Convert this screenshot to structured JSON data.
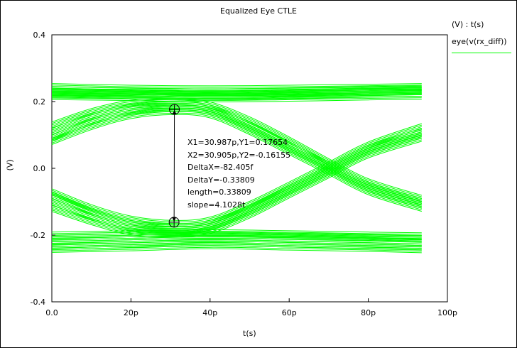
{
  "window": {
    "title": "Equalized Eye CTLE"
  },
  "legend": {
    "units_label": "(V) : t(s)",
    "series_label": "eye(v(rx_diff))",
    "series_color": "#00ff00"
  },
  "marker": {
    "lines": [
      "X1=30.987p,Y1=0.17654",
      "X2=30.905p,Y2=-0.16155",
      "DeltaX=-82.405f",
      "DeltaY=-0.33809",
      "length=0.33809",
      "slope=4.1028t"
    ]
  },
  "chart_data": {
    "type": "line",
    "title": "Equalized Eye CTLE",
    "xlabel": "t(s)",
    "ylabel": "(V)",
    "xlim": [
      0,
      100
    ],
    "ylim": [
      -0.4,
      0.4
    ],
    "x_unit": "p",
    "xticks": [
      "0.0",
      "20p",
      "40p",
      "60p",
      "80p",
      "100p"
    ],
    "xtick_values": [
      0,
      20,
      40,
      60,
      80,
      100
    ],
    "yticks": [
      "0.4",
      "0.2",
      "0.0",
      "-0.2",
      "-0.4"
    ],
    "ytick_values": [
      0.4,
      0.2,
      0.0,
      -0.2,
      -0.4
    ],
    "grid": false,
    "legend_position": "right",
    "series": [
      {
        "name": "eye(v(rx_diff))",
        "color": "#00ff00",
        "traces": [
          {
            "x": [
              0,
              20,
              40,
              60,
              80,
              93.5
            ],
            "y": [
              0.245,
              0.24,
              0.238,
              0.24,
              0.243,
              0.245
            ]
          },
          {
            "x": [
              0,
              20,
              40,
              60,
              80,
              93.5
            ],
            "y": [
              0.235,
              0.232,
              0.229,
              0.232,
              0.236,
              0.238
            ]
          },
          {
            "x": [
              0,
              20,
              40,
              60,
              80,
              93.5
            ],
            "y": [
              0.222,
              0.218,
              0.214,
              0.217,
              0.222,
              0.225
            ]
          },
          {
            "x": [
              0,
              20,
              40,
              60,
              80,
              93.5
            ],
            "y": [
              0.215,
              0.212,
              0.208,
              0.21,
              0.214,
              0.216
            ]
          },
          {
            "x": [
              0,
              20,
              40,
              60,
              80,
              93.5
            ],
            "y": [
              0.228,
              0.225,
              0.222,
              0.225,
              0.23,
              0.232
            ]
          },
          {
            "x": [
              0,
              20,
              40,
              60,
              80,
              93.5
            ],
            "y": [
              -0.21,
              -0.205,
              -0.2,
              -0.203,
              -0.207,
              -0.21
            ]
          },
          {
            "x": [
              0,
              20,
              40,
              60,
              80,
              93.5
            ],
            "y": [
              -0.22,
              -0.214,
              -0.21,
              -0.213,
              -0.218,
              -0.222
            ]
          },
          {
            "x": [
              0,
              20,
              40,
              60,
              80,
              93.5
            ],
            "y": [
              -0.235,
              -0.228,
              -0.222,
              -0.227,
              -0.232,
              -0.236
            ]
          },
          {
            "x": [
              0,
              20,
              40,
              60,
              80,
              93.5
            ],
            "y": [
              -0.243,
              -0.238,
              -0.232,
              -0.236,
              -0.24,
              -0.244
            ]
          },
          {
            "x": [
              0,
              20,
              40,
              60,
              80,
              93.5
            ],
            "y": [
              -0.2,
              -0.196,
              -0.193,
              -0.196,
              -0.2,
              -0.202
            ]
          },
          {
            "x": [
              0,
              10,
              20,
              31,
              40,
              50,
              60,
              70,
              80,
              93.5
            ],
            "y": [
              0.09,
              0.14,
              0.17,
              0.18,
              0.17,
              0.12,
              0.06,
              0.0,
              -0.06,
              -0.11
            ]
          },
          {
            "x": [
              0,
              10,
              20,
              31,
              40,
              50,
              60,
              70,
              80,
              93.5
            ],
            "y": [
              0.11,
              0.155,
              0.183,
              0.19,
              0.18,
              0.13,
              0.07,
              0.01,
              -0.05,
              -0.1
            ]
          },
          {
            "x": [
              0,
              10,
              20,
              31,
              40,
              50,
              60,
              70,
              80,
              93.5
            ],
            "y": [
              0.13,
              0.17,
              0.195,
              0.2,
              0.19,
              0.145,
              0.085,
              0.02,
              -0.04,
              -0.09
            ]
          },
          {
            "x": [
              0,
              10,
              20,
              31,
              40,
              50,
              60,
              70,
              80,
              93.5
            ],
            "y": [
              0.08,
              0.125,
              0.158,
              0.17,
              0.16,
              0.11,
              0.05,
              -0.01,
              -0.07,
              -0.12
            ]
          },
          {
            "x": [
              0,
              10,
              20,
              31,
              40,
              50,
              60,
              70,
              80,
              93.5
            ],
            "y": [
              -0.08,
              -0.13,
              -0.165,
              -0.175,
              -0.165,
              -0.12,
              -0.06,
              0.0,
              0.06,
              0.11
            ]
          },
          {
            "x": [
              0,
              10,
              20,
              31,
              40,
              50,
              60,
              70,
              80,
              93.5
            ],
            "y": [
              -0.1,
              -0.145,
              -0.178,
              -0.185,
              -0.175,
              -0.13,
              -0.07,
              -0.01,
              0.05,
              0.1
            ]
          },
          {
            "x": [
              0,
              10,
              20,
              31,
              40,
              50,
              60,
              70,
              80,
              93.5
            ],
            "y": [
              -0.12,
              -0.16,
              -0.19,
              -0.196,
              -0.186,
              -0.14,
              -0.08,
              -0.02,
              0.04,
              0.09
            ]
          },
          {
            "x": [
              0,
              10,
              20,
              31,
              40,
              50,
              60,
              70,
              80,
              93.5
            ],
            "y": [
              -0.07,
              -0.118,
              -0.152,
              -0.165,
              -0.155,
              -0.108,
              -0.05,
              0.01,
              0.07,
              0.125
            ]
          }
        ]
      }
    ],
    "markers": [
      {
        "x": 30.987,
        "y": 0.17654
      },
      {
        "x": 30.905,
        "y": -0.16155
      }
    ]
  }
}
